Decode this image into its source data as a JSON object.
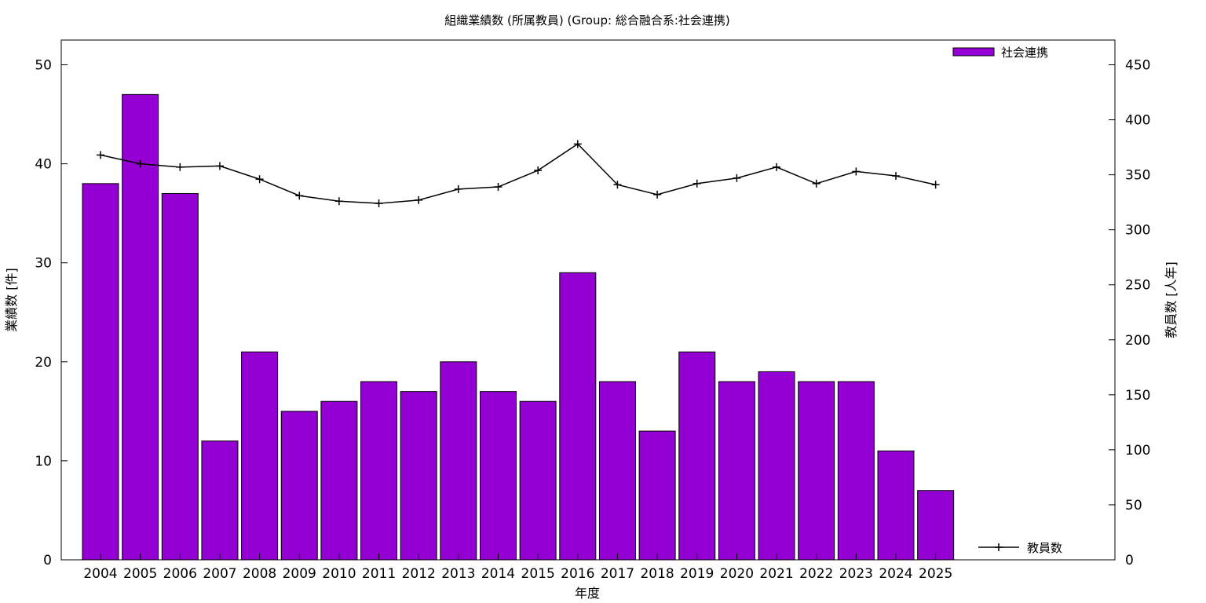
{
  "chart_data": {
    "type": "bar",
    "title": "組織業績数 (所属教員) (Group: 総合融合系:社会連携)",
    "xlabel": "年度",
    "ylabel": "業績数 [件]",
    "y2label": "教員数 [人年]",
    "categories": [
      "2004",
      "2005",
      "2006",
      "2007",
      "2008",
      "2009",
      "2010",
      "2011",
      "2012",
      "2013",
      "2014",
      "2015",
      "2016",
      "2017",
      "2018",
      "2019",
      "2020",
      "2021",
      "2022",
      "2023",
      "2024",
      "2025"
    ],
    "ylim": [
      0,
      52.5
    ],
    "y2lim": [
      0,
      472.5
    ],
    "yticks": [
      0,
      10,
      20,
      30,
      40,
      50
    ],
    "y2ticks": [
      0,
      50,
      100,
      150,
      200,
      250,
      300,
      350,
      400,
      450
    ],
    "grid": false,
    "series": [
      {
        "name": "社会連携",
        "type": "bar",
        "axis": "left",
        "color": "#9400D3",
        "values": [
          38,
          47,
          37,
          12,
          21,
          15,
          16,
          18,
          17,
          20,
          17,
          16,
          29,
          18,
          13,
          21,
          18,
          19,
          18,
          18,
          11,
          7
        ]
      },
      {
        "name": "教員数",
        "type": "line",
        "axis": "right",
        "color": "#000000",
        "marker": "plus",
        "values": [
          368,
          360,
          357,
          358,
          346,
          331,
          326,
          324,
          327,
          337,
          339,
          354,
          378,
          341,
          332,
          342,
          347,
          357,
          342,
          353,
          349,
          341
        ]
      }
    ],
    "legend": [
      {
        "label": "社会連携",
        "kind": "bar",
        "position": "top-right"
      },
      {
        "label": "教員数",
        "kind": "line",
        "position": "bottom-right"
      }
    ]
  }
}
